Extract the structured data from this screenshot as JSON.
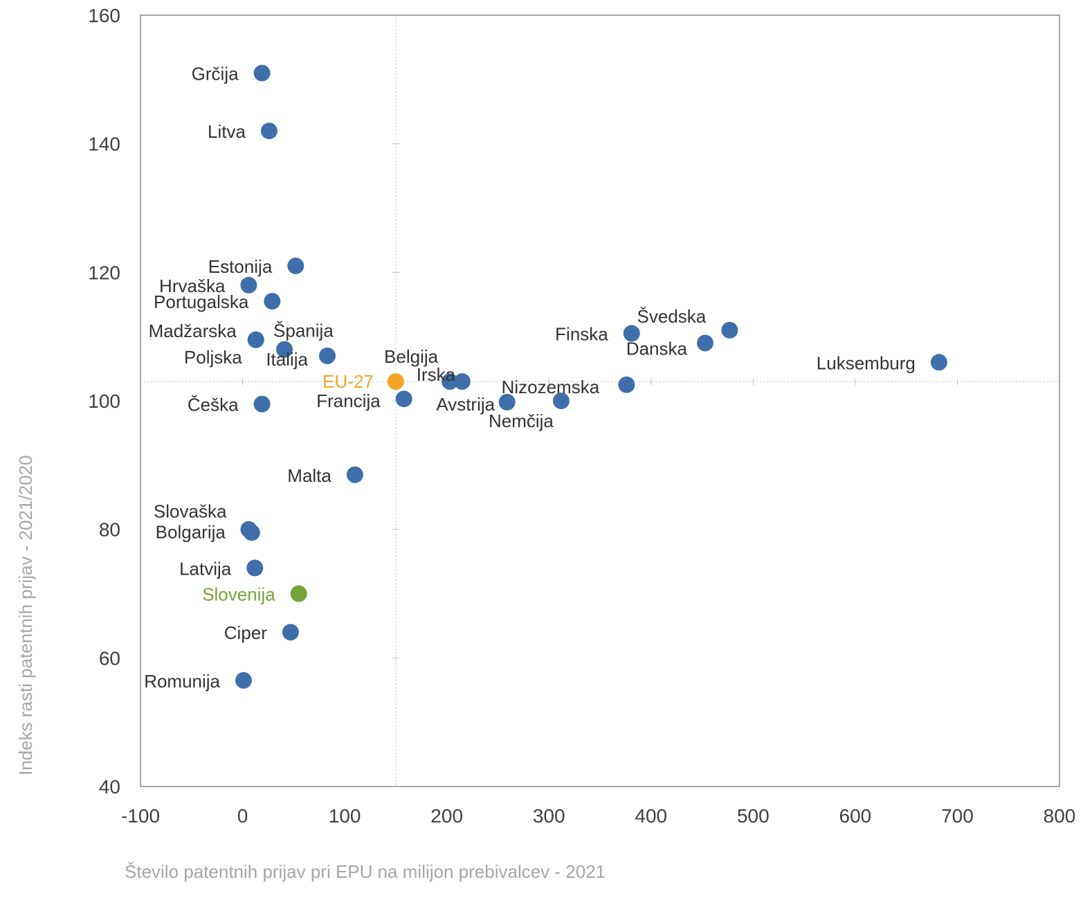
{
  "chart_data": {
    "type": "scatter",
    "title": "",
    "xlabel": "Število patentnih prijav pri EPU na milijon prebivalcev - 2021",
    "ylabel": "Indeks rasti patentnih prijav - 2021/2020",
    "xlim": [
      -100,
      800
    ],
    "ylim": [
      40,
      160
    ],
    "x_ticks": [
      "-100",
      "0",
      "100",
      "200",
      "300",
      "400",
      "500",
      "600",
      "700",
      "800"
    ],
    "y_ticks": [
      "40",
      "60",
      "80",
      "100",
      "120",
      "140",
      "160"
    ],
    "reference_lines": {
      "x": 150,
      "y": 103
    },
    "grid": false,
    "colors": {
      "default": "#3f6faa",
      "eu": "#f2a623",
      "slovenia": "#77a239"
    },
    "points": [
      {
        "label": "Grčija",
        "x": 19,
        "y": 151,
        "group": "default"
      },
      {
        "label": "Litva",
        "x": 26,
        "y": 142,
        "group": "default"
      },
      {
        "label": "Estonija",
        "x": 52,
        "y": 121,
        "group": "default"
      },
      {
        "label": "Hrvaška",
        "x": 6,
        "y": 118,
        "group": "default"
      },
      {
        "label": "Portugalska",
        "x": 29,
        "y": 115.5,
        "group": "default"
      },
      {
        "label": "Madžarska",
        "x": 13,
        "y": 109.5,
        "group": "default"
      },
      {
        "label": "Španija",
        "x": 41,
        "y": 108,
        "group": "default"
      },
      {
        "label": "Italija",
        "x": 83,
        "y": 107,
        "group": "default"
      },
      {
        "label": "Poljska",
        "x": 13,
        "y": 109.5,
        "group": "default"
      },
      {
        "label": "Belgija",
        "x": 203,
        "y": 103,
        "group": "default"
      },
      {
        "label": "Irska",
        "x": 215,
        "y": 103,
        "group": "default"
      },
      {
        "label": "EU-27",
        "x": 150,
        "y": 103,
        "group": "eu"
      },
      {
        "label": "Francija",
        "x": 158,
        "y": 100.3,
        "group": "default"
      },
      {
        "label": "Avstrija",
        "x": 259,
        "y": 99.8,
        "group": "default"
      },
      {
        "label": "Nemčija",
        "x": 312,
        "y": 100,
        "group": "default"
      },
      {
        "label": "Nizozemska",
        "x": 376,
        "y": 102.5,
        "group": "default"
      },
      {
        "label": "Finska",
        "x": 381,
        "y": 110.5,
        "group": "default"
      },
      {
        "label": "Švedska",
        "x": 477,
        "y": 111,
        "group": "default"
      },
      {
        "label": "Danska",
        "x": 453,
        "y": 109,
        "group": "default"
      },
      {
        "label": "Luksemburg",
        "x": 682,
        "y": 106,
        "group": "default"
      },
      {
        "label": "Češka",
        "x": 19,
        "y": 99.5,
        "group": "default"
      },
      {
        "label": "Malta",
        "x": 110,
        "y": 88.5,
        "group": "default"
      },
      {
        "label": "Slovaška",
        "x": 6,
        "y": 80,
        "group": "default"
      },
      {
        "label": "Bolgarija",
        "x": 9,
        "y": 79.5,
        "group": "default"
      },
      {
        "label": "Latvija",
        "x": 12,
        "y": 74,
        "group": "default"
      },
      {
        "label": "Slovenija",
        "x": 55,
        "y": 70,
        "group": "slovenia"
      },
      {
        "label": "Ciper",
        "x": 47,
        "y": 64,
        "group": "default"
      },
      {
        "label": "Romunija",
        "x": 1,
        "y": 56.5,
        "group": "default"
      }
    ]
  }
}
